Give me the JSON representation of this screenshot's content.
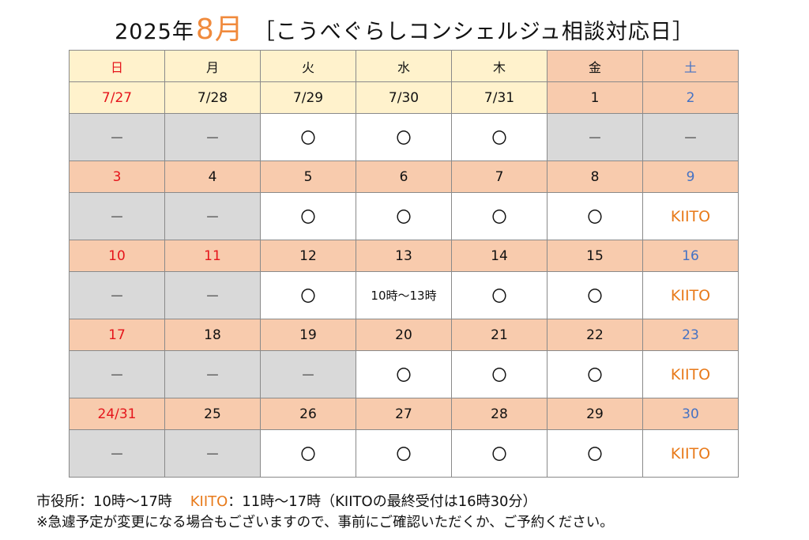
{
  "title": {
    "year": "2025年",
    "month": "8月",
    "rest": "［こうべぐらしコンシェルジュ相談対応日］"
  },
  "colors": {
    "header_cream": "#fff2cc",
    "date_orange": "#f8cbad",
    "closed_gray": "#d9d9d9",
    "sunday_red": "#e5151b",
    "saturday_blue": "#4472c4",
    "kiito_orange": "#e87a1a",
    "month_orange": "#f08a3c"
  },
  "calendar": {
    "weekdays": [
      "日",
      "月",
      "火",
      "水",
      "木",
      "金",
      "土"
    ],
    "weeks": [
      {
        "dates": [
          "7/27",
          "7/28",
          "7/29",
          "7/30",
          "7/31",
          "1",
          "2"
        ],
        "slots": [
          "－",
          "－",
          "〇",
          "〇",
          "〇",
          "－",
          "－"
        ]
      },
      {
        "dates": [
          "3",
          "4",
          "5",
          "6",
          "7",
          "8",
          "9"
        ],
        "slots": [
          "－",
          "－",
          "〇",
          "〇",
          "〇",
          "〇",
          "KIITO"
        ]
      },
      {
        "dates": [
          "10",
          "11",
          "12",
          "13",
          "14",
          "15",
          "16"
        ],
        "slots": [
          "－",
          "－",
          "〇",
          "10時～13時",
          "〇",
          "〇",
          "KIITO"
        ]
      },
      {
        "dates": [
          "17",
          "18",
          "19",
          "20",
          "21",
          "22",
          "23"
        ],
        "slots": [
          "－",
          "－",
          "－",
          "〇",
          "〇",
          "〇",
          "KIITO"
        ]
      },
      {
        "dates": [
          "24/31",
          "25",
          "26",
          "27",
          "28",
          "29",
          "30"
        ],
        "slots": [
          "－",
          "－",
          "〇",
          "〇",
          "〇",
          "〇",
          "KIITO"
        ]
      }
    ]
  },
  "footer": {
    "line1_a": "市役所：10時～17時",
    "line1_kiito": "KIITO",
    "line1_b": "：11時～17時（KIITOの最終受付は16時30分）",
    "line2": "※急遽予定が変更になる場合もございますので、事前にご確認いただくか、ご予約ください。"
  }
}
